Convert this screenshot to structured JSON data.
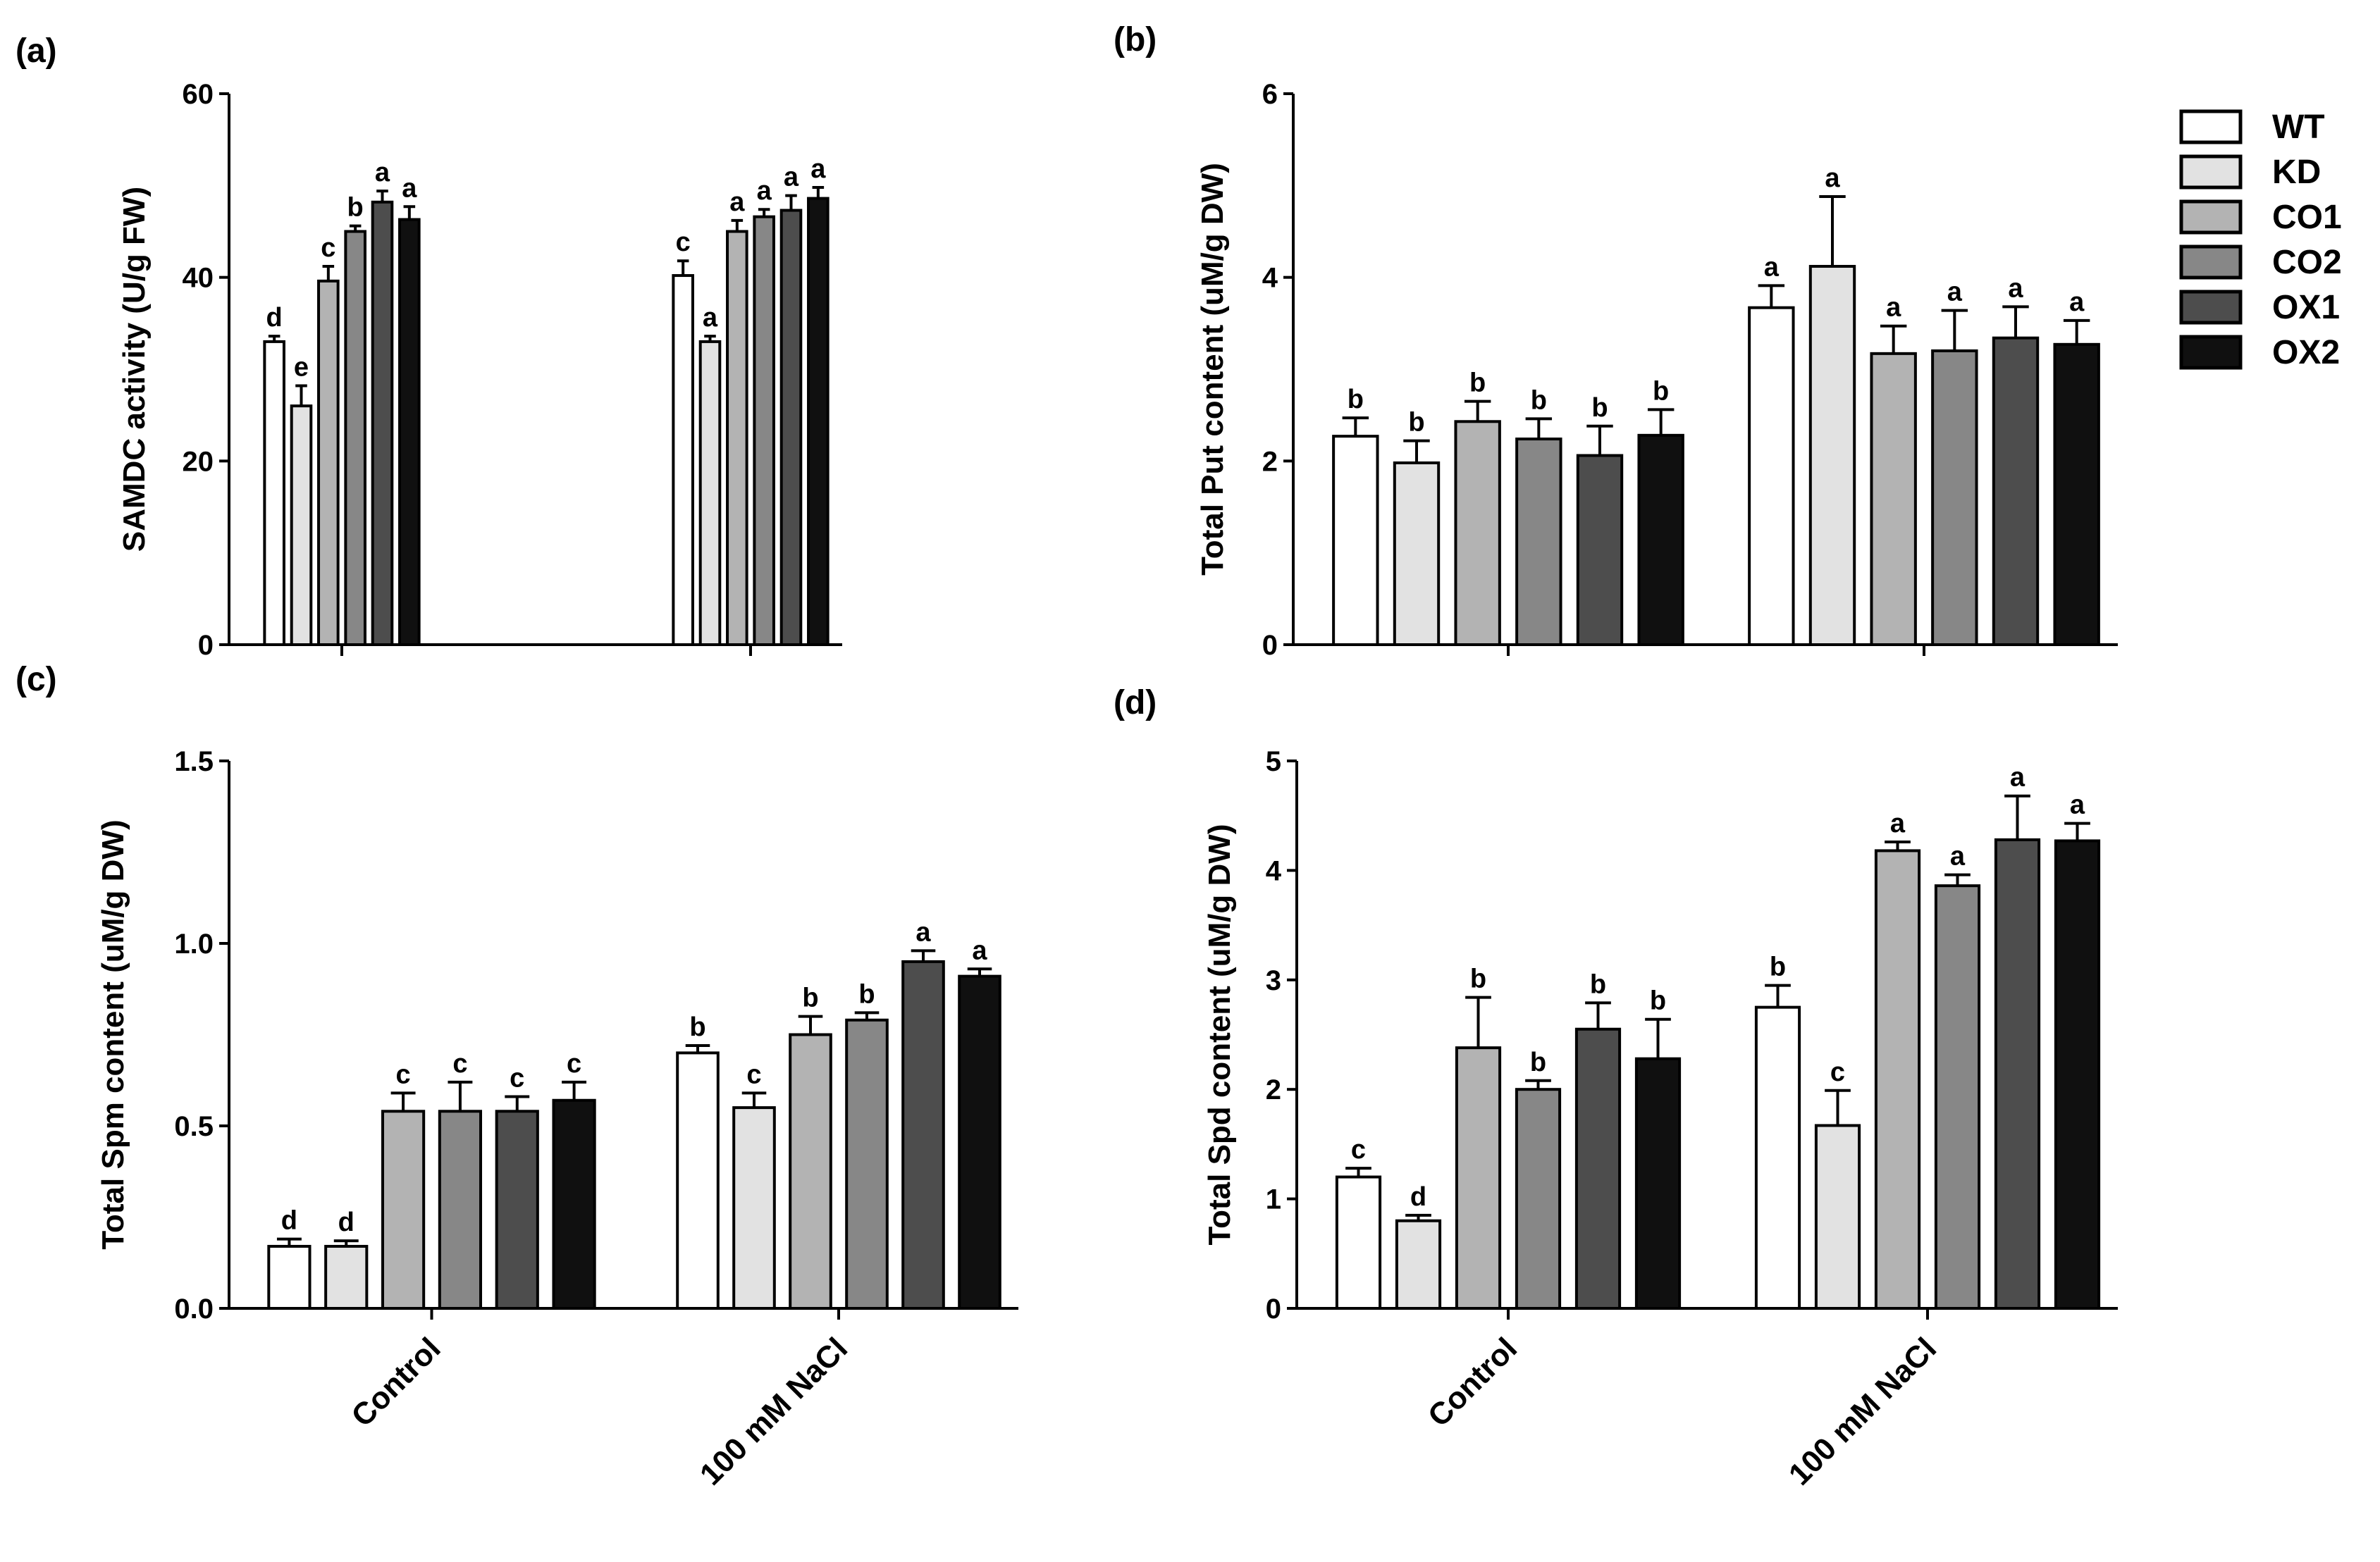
{
  "series": [
    "WT",
    "KD",
    "CO1",
    "CO2",
    "OX1",
    "OX2"
  ],
  "colors": {
    "WT": "#ffffff",
    "KD": "#e2e2e2",
    "CO1": "#b3b3b3",
    "CO2": "#878787",
    "OX1": "#4d4d4d",
    "OX2": "#101010"
  },
  "chart_data": [
    {
      "panel": "(a)",
      "type": "bar",
      "ylabel": "SAMDC activity (U/g FW)",
      "ylim": [
        0,
        60
      ],
      "yticks": [
        "0",
        "20",
        "40",
        "60"
      ],
      "categories": [
        "Control",
        "100 mM NaCl"
      ],
      "series": [
        {
          "name": "WT",
          "values": [
            33,
            40.2
          ],
          "errors": [
            0.6,
            1.6
          ],
          "letters": [
            "d",
            "c"
          ]
        },
        {
          "name": "KD",
          "values": [
            26,
            33
          ],
          "errors": [
            2.2,
            0.6
          ],
          "letters": [
            "e",
            "a"
          ]
        },
        {
          "name": "CO1",
          "values": [
            39.6,
            45
          ],
          "errors": [
            1.6,
            1.2
          ],
          "letters": [
            "c",
            "a"
          ]
        },
        {
          "name": "CO2",
          "values": [
            45,
            46.6
          ],
          "errors": [
            0.6,
            0.8
          ],
          "letters": [
            "b",
            "a"
          ]
        },
        {
          "name": "OX1",
          "values": [
            48.2,
            47.3
          ],
          "errors": [
            1.2,
            1.6
          ],
          "letters": [
            "a",
            "a"
          ]
        },
        {
          "name": "OX2",
          "values": [
            46.3,
            48.6
          ],
          "errors": [
            1.4,
            1.2
          ],
          "letters": [
            "a",
            "a"
          ]
        }
      ]
    },
    {
      "panel": "(b)",
      "type": "bar",
      "ylabel": "Total Put content (uM/g DW)",
      "ylim": [
        0,
        6
      ],
      "yticks": [
        "0",
        "2",
        "4",
        "6"
      ],
      "categories": [
        "Control",
        "100 mM NaCl"
      ],
      "series": [
        {
          "name": "WT",
          "values": [
            2.27,
            3.67
          ],
          "errors": [
            0.2,
            0.24
          ],
          "letters": [
            "b",
            "a"
          ]
        },
        {
          "name": "KD",
          "values": [
            1.98,
            4.12
          ],
          "errors": [
            0.24,
            0.76
          ],
          "letters": [
            "b",
            "a"
          ]
        },
        {
          "name": "CO1",
          "values": [
            2.43,
            3.17
          ],
          "errors": [
            0.22,
            0.3
          ],
          "letters": [
            "b",
            "a"
          ]
        },
        {
          "name": "CO2",
          "values": [
            2.24,
            3.2
          ],
          "errors": [
            0.22,
            0.44
          ],
          "letters": [
            "b",
            "a"
          ]
        },
        {
          "name": "OX1",
          "values": [
            2.06,
            3.34
          ],
          "errors": [
            0.32,
            0.34
          ],
          "letters": [
            "b",
            "a"
          ]
        },
        {
          "name": "OX2",
          "values": [
            2.28,
            3.27
          ],
          "errors": [
            0.28,
            0.26
          ],
          "letters": [
            "b",
            "a"
          ]
        }
      ]
    },
    {
      "panel": "(c)",
      "type": "bar",
      "ylabel": "Total Spm content (uM/g DW)",
      "ylim": [
        0,
        1.5
      ],
      "yticks": [
        "0.0",
        "0.5",
        "1.0",
        "1.5"
      ],
      "categories": [
        "Control",
        "100 mM NaCl"
      ],
      "series": [
        {
          "name": "WT",
          "values": [
            0.17,
            0.7
          ],
          "errors": [
            0.02,
            0.02
          ],
          "letters": [
            "d",
            "b"
          ]
        },
        {
          "name": "KD",
          "values": [
            0.17,
            0.55
          ],
          "errors": [
            0.015,
            0.04
          ],
          "letters": [
            "d",
            "c"
          ]
        },
        {
          "name": "CO1",
          "values": [
            0.54,
            0.75
          ],
          "errors": [
            0.05,
            0.05
          ],
          "letters": [
            "c",
            "b"
          ]
        },
        {
          "name": "CO2",
          "values": [
            0.54,
            0.79
          ],
          "errors": [
            0.08,
            0.02
          ],
          "letters": [
            "c",
            "b"
          ]
        },
        {
          "name": "OX1",
          "values": [
            0.54,
            0.95
          ],
          "errors": [
            0.04,
            0.03
          ],
          "letters": [
            "c",
            "a"
          ]
        },
        {
          "name": "OX2",
          "values": [
            0.57,
            0.91
          ],
          "errors": [
            0.05,
            0.02
          ],
          "letters": [
            "c",
            "a"
          ]
        }
      ]
    },
    {
      "panel": "(d)",
      "type": "bar",
      "ylabel": "Total Spd content (uM/g DW)",
      "ylim": [
        0,
        5
      ],
      "yticks": [
        "0",
        "1",
        "2",
        "3",
        "4",
        "5"
      ],
      "categories": [
        "Control",
        "100 mM NaCl"
      ],
      "series": [
        {
          "name": "WT",
          "values": [
            1.2,
            2.75
          ],
          "errors": [
            0.08,
            0.2
          ],
          "letters": [
            "c",
            "b"
          ]
        },
        {
          "name": "KD",
          "values": [
            0.8,
            1.67
          ],
          "errors": [
            0.05,
            0.32
          ],
          "letters": [
            "d",
            "c"
          ]
        },
        {
          "name": "CO1",
          "values": [
            2.38,
            4.18
          ],
          "errors": [
            0.46,
            0.08
          ],
          "letters": [
            "b",
            "a"
          ]
        },
        {
          "name": "CO2",
          "values": [
            2.0,
            3.86
          ],
          "errors": [
            0.08,
            0.1
          ],
          "letters": [
            "b",
            "a"
          ]
        },
        {
          "name": "OX1",
          "values": [
            2.55,
            4.28
          ],
          "errors": [
            0.24,
            0.4
          ],
          "letters": [
            "b",
            "a"
          ]
        },
        {
          "name": "OX2",
          "values": [
            2.28,
            4.27
          ],
          "errors": [
            0.36,
            0.16
          ],
          "letters": [
            "b",
            "a"
          ]
        }
      ]
    }
  ]
}
